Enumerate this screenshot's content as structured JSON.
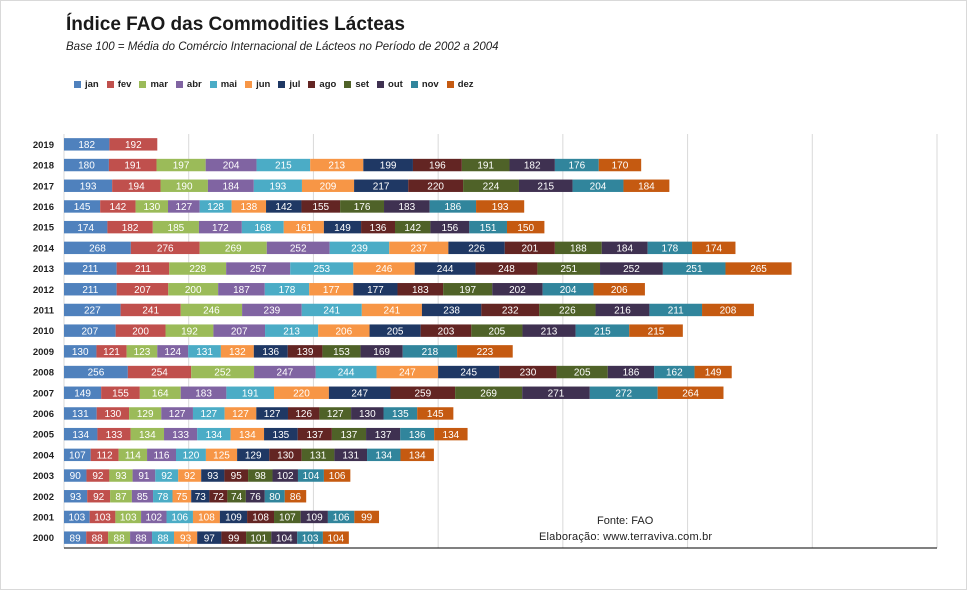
{
  "chart_data": {
    "type": "bar",
    "orientation": "horizontal",
    "stacked": true,
    "title": "Índice FAO das Commodities Lácteas",
    "subtitle": "Base 100 = Média do Comércio  Internacional de Lácteos  no Período de 2002 a 2004",
    "xlabel": "",
    "ylabel": "",
    "xlim": [
      0,
      3500
    ],
    "grid": "vertical",
    "legend_position": "top-left",
    "categories": [
      "2019",
      "2018",
      "2017",
      "2016",
      "2015",
      "2014",
      "2013",
      "2012",
      "2011",
      "2010",
      "2009",
      "2008",
      "2007",
      "2006",
      "2005",
      "2004",
      "2003",
      "2002",
      "2001",
      "2000"
    ],
    "series": [
      {
        "name": "jan",
        "color": "#4f81bd",
        "values": [
          182,
          180,
          193,
          145,
          174,
          268,
          211,
          211,
          227,
          207,
          130,
          256,
          149,
          131,
          134,
          107,
          90,
          93,
          103,
          89
        ]
      },
      {
        "name": "fev",
        "color": "#c0504d",
        "values": [
          192,
          191,
          194,
          142,
          182,
          276,
          211,
          207,
          241,
          200,
          121,
          254,
          155,
          130,
          133,
          112,
          92,
          92,
          103,
          88
        ]
      },
      {
        "name": "mar",
        "color": "#9bbb59",
        "values": [
          null,
          197,
          190,
          130,
          185,
          269,
          228,
          200,
          246,
          192,
          123,
          252,
          164,
          129,
          134,
          114,
          93,
          87,
          103,
          88
        ]
      },
      {
        "name": "abr",
        "color": "#8064a2",
        "values": [
          null,
          204,
          184,
          127,
          172,
          252,
          257,
          187,
          239,
          207,
          124,
          247,
          183,
          127,
          133,
          116,
          91,
          85,
          102,
          88
        ]
      },
      {
        "name": "mai",
        "color": "#4bacc6",
        "values": [
          null,
          215,
          193,
          128,
          168,
          239,
          253,
          178,
          241,
          213,
          131,
          244,
          191,
          127,
          134,
          120,
          92,
          78,
          106,
          88
        ]
      },
      {
        "name": "jun",
        "color": "#f79646",
        "values": [
          null,
          213,
          209,
          138,
          161,
          237,
          246,
          177,
          241,
          206,
          132,
          247,
          220,
          127,
          134,
          125,
          92,
          75,
          108,
          93
        ]
      },
      {
        "name": "jul",
        "color": "#1f3864",
        "values": [
          null,
          199,
          217,
          142,
          149,
          226,
          244,
          177,
          238,
          205,
          136,
          245,
          247,
          127,
          135,
          129,
          93,
          73,
          109,
          97
        ]
      },
      {
        "name": "ago",
        "color": "#632523",
        "values": [
          null,
          196,
          220,
          155,
          136,
          201,
          248,
          183,
          232,
          203,
          139,
          230,
          259,
          126,
          137,
          130,
          95,
          72,
          108,
          99
        ]
      },
      {
        "name": "set",
        "color": "#4f6228",
        "values": [
          null,
          191,
          224,
          176,
          142,
          188,
          251,
          197,
          226,
          205,
          153,
          205,
          269,
          127,
          137,
          131,
          98,
          74,
          107,
          101
        ]
      },
      {
        "name": "out",
        "color": "#3f3151",
        "values": [
          null,
          182,
          215,
          183,
          156,
          184,
          252,
          202,
          216,
          213,
          169,
          186,
          271,
          130,
          137,
          131,
          102,
          76,
          109,
          104
        ]
      },
      {
        "name": "nov",
        "color": "#31859c",
        "values": [
          null,
          176,
          204,
          186,
          151,
          178,
          251,
          204,
          211,
          215,
          218,
          162,
          272,
          135,
          136,
          134,
          104,
          80,
          106,
          103
        ]
      },
      {
        "name": "dez",
        "color": "#c55a11",
        "values": [
          null,
          170,
          184,
          193,
          150,
          174,
          265,
          206,
          208,
          215,
          223,
          149,
          264,
          145,
          134,
          134,
          106,
          86,
          99,
          104
        ]
      }
    ]
  },
  "source": {
    "line1": "Fonte: FAO",
    "line2": "Elaboração: www.terraviva.com.br"
  }
}
